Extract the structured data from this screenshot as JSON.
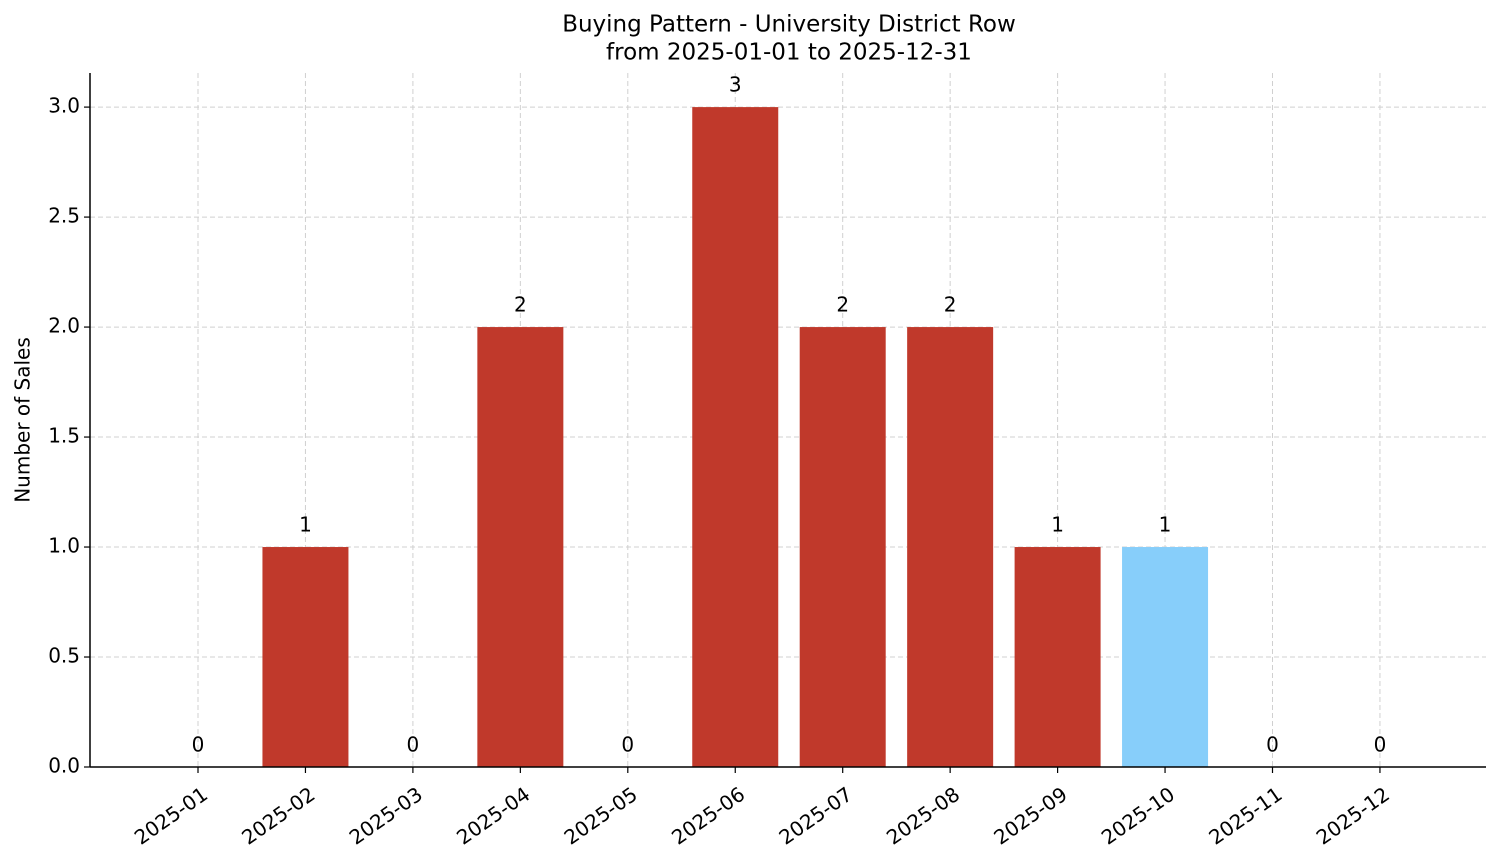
{
  "chart_data": {
    "type": "bar",
    "title": "Buying Pattern - University District Row",
    "subtitle": "from 2025-01-01 to 2025-12-31",
    "y_label": "Number of Sales",
    "categories": [
      "2025-01",
      "2025-02",
      "2025-03",
      "2025-04",
      "2025-05",
      "2025-06",
      "2025-07",
      "2025-08",
      "2025-09",
      "2025-10",
      "2025-11",
      "2025-12"
    ],
    "values": [
      0,
      1,
      0,
      2,
      0,
      3,
      2,
      2,
      1,
      1,
      0,
      0
    ],
    "colors": [
      "#c0392b",
      "#c0392b",
      "#c0392b",
      "#c0392b",
      "#c0392b",
      "#c0392b",
      "#c0392b",
      "#c0392b",
      "#c0392b",
      "#87cefa",
      "#c0392b",
      "#c0392b"
    ],
    "ylim": [
      0,
      3.155
    ],
    "yticks": [
      {
        "value": 0,
        "label": "0.0"
      },
      0.5,
      {
        "value": 1,
        "label": "1.0"
      },
      1.5,
      {
        "value": 2,
        "label": "2.0"
      },
      2.5,
      {
        "value": 3,
        "label": "3.0"
      }
    ],
    "grid": true
  }
}
